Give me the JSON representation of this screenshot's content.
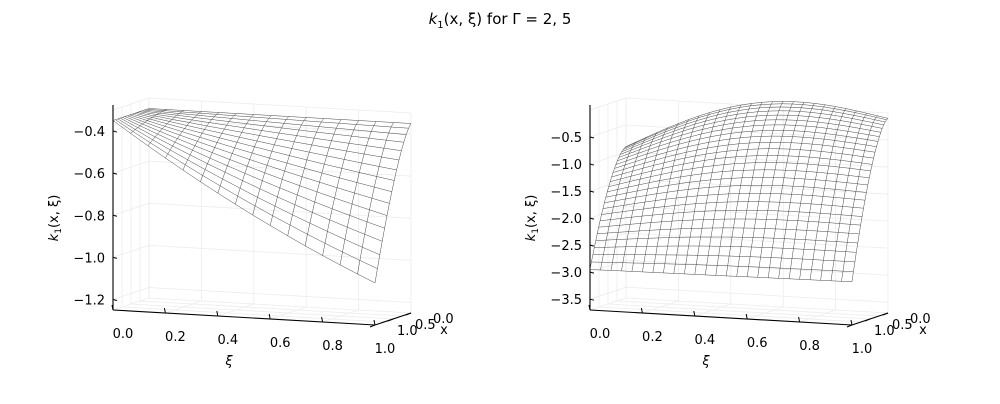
{
  "figure": {
    "title_prefix": "k",
    "title_sub": "1",
    "title_args": "(x, ξ)",
    "title_suffix": " for Γ = 2, 5"
  },
  "chart_data": [
    {
      "type": "surface",
      "title": "",
      "gamma": 2,
      "xlabel": "x",
      "ylabel": "ξ",
      "zlabel_prefix": "k",
      "zlabel_sub": "1",
      "zlabel_args": "(x, ξ)",
      "x_range": [
        0.0,
        1.0
      ],
      "xi_range": [
        0.0,
        1.0
      ],
      "zlim": [
        -1.25,
        -0.3
      ],
      "x_ticks": [
        "0.0",
        "0.5",
        "1.0"
      ],
      "xi_ticks": [
        "0.0",
        "0.2",
        "0.4",
        "0.6",
        "0.8",
        "1.0"
      ],
      "z_ticks": [
        "−0.4",
        "−0.6",
        "−0.8",
        "−1.0",
        "−1.2"
      ],
      "z_tick_values": [
        -0.4,
        -0.6,
        -0.8,
        -1.0,
        -1.2
      ],
      "grid": true,
      "mesh_lines": 15,
      "z_corners": {
        "x0_xi0": -0.35,
        "x0_xi1": -0.35,
        "x1_xi0": -0.35,
        "x1_xi1": -1.05
      }
    },
    {
      "type": "surface",
      "title": "",
      "gamma": 5,
      "xlabel": "x",
      "ylabel": "ξ",
      "zlabel_prefix": "k",
      "zlabel_sub": "1",
      "zlabel_args": "(x, ξ)",
      "x_range": [
        0.0,
        1.0
      ],
      "xi_range": [
        0.0,
        1.0
      ],
      "zlim": [
        -3.7,
        0.0
      ],
      "x_ticks": [
        "0.0",
        "0.5",
        "1.0"
      ],
      "xi_ticks": [
        "0.0",
        "0.2",
        "0.4",
        "0.6",
        "0.8",
        "1.0"
      ],
      "z_ticks": [
        "−0.5",
        "−1.0",
        "−1.5",
        "−2.0",
        "−2.5",
        "−3.0",
        "−3.5"
      ],
      "z_tick_values": [
        -0.5,
        -1.0,
        -1.5,
        -2.0,
        -2.5,
        -3.0,
        -3.5
      ],
      "grid": true,
      "mesh_lines": 25,
      "z_corners": {
        "x0_xi0": -0.9,
        "x0_xi1": -0.1,
        "x1_xi0": -2.95,
        "x1_xi1": -2.9
      }
    }
  ]
}
